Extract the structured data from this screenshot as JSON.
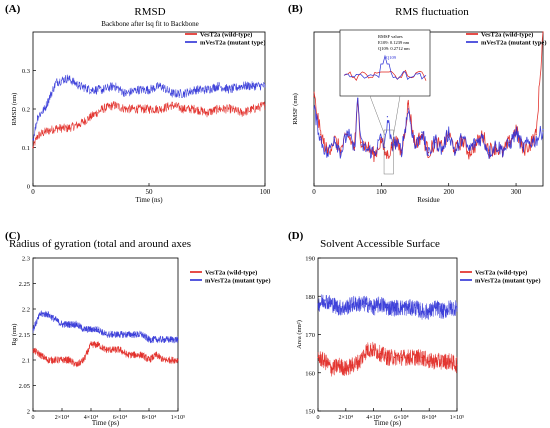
{
  "panels": [
    {
      "id": "A",
      "label": "(A)",
      "title": "RMSD",
      "subtitle": "Backbone after lsq fit to Backbone",
      "xlabel": "Time (ns)",
      "ylabel": "RMSD (nm)",
      "xlim": [
        0,
        100
      ],
      "ylim": [
        0,
        0.4
      ],
      "xticks": [
        0,
        50,
        100
      ],
      "xtick_labels": [
        "0",
        "50",
        "100"
      ],
      "yticks": [
        0,
        0.1,
        0.2,
        0.3
      ],
      "ytick_labels": [
        "0",
        "0.1",
        "0.2",
        "0.3"
      ],
      "legend": [
        "VesT2a (wild-type)",
        "mVesT2a (mutant type)"
      ]
    },
    {
      "id": "B",
      "label": "(B)",
      "title": "RMS fluctuation",
      "xlabel": "Residue",
      "ylabel": "RMSF (nm)",
      "xlim": [
        0,
        340
      ],
      "xticks": [
        0,
        100,
        200,
        300
      ],
      "xtick_labels": [
        "0",
        "100",
        "200",
        "300"
      ],
      "legend": [
        "VesT2a (wild-type)",
        "mVesT2a (mutant type)"
      ],
      "inset": {
        "annotation_lines": [
          "RMSF values",
          "E109: 0.1239 nm",
          "Q109: 0.2712 nm"
        ],
        "peak_label": "Q109"
      }
    },
    {
      "id": "C",
      "label": "(C)",
      "title": "Radius of gyration (total and around axes",
      "xlabel": "Time (ps)",
      "ylabel": "Rg (nm)",
      "xlim": [
        0,
        100000
      ],
      "ylim": [
        2.0,
        2.3
      ],
      "xticks": [
        0,
        20000,
        40000,
        60000,
        80000,
        100000
      ],
      "xtick_labels": [
        "0",
        "2×10⁴",
        "4×10⁴",
        "6×10⁴",
        "8×10⁴",
        "1×10⁵"
      ],
      "yticks": [
        2.0,
        2.05,
        2.1,
        2.15,
        2.2,
        2.25,
        2.3
      ],
      "ytick_labels": [
        "2",
        "2.05",
        "2.1",
        "2.15",
        "2.2",
        "2.25",
        "2.3"
      ],
      "legend": [
        "VesT2a (wild-type)",
        "mVesT2a (mutant type)"
      ]
    },
    {
      "id": "D",
      "label": "(D)",
      "title": "Solvent Accessible Surface",
      "xlabel": "Time (ps)",
      "ylabel": "Area (nm²)",
      "xlim": [
        0,
        100000
      ],
      "ylim": [
        150,
        190
      ],
      "xticks": [
        0,
        20000,
        40000,
        60000,
        80000,
        100000
      ],
      "xtick_labels": [
        "0",
        "2×10⁴",
        "4×10⁴",
        "6×10⁴",
        "8×10⁴",
        "1×10⁵"
      ],
      "yticks": [
        150,
        160,
        170,
        180,
        190
      ],
      "ytick_labels": [
        "150",
        "160",
        "170",
        "180",
        "190"
      ],
      "legend": [
        "VesT2a (wild-type)",
        "mVesT2a (mutant type)"
      ]
    }
  ],
  "colors": {
    "wild": "#e0201b",
    "mutant": "#2b2fd6"
  },
  "chart_data": [
    {
      "panel": "A",
      "type": "line",
      "title": "RMSD",
      "xlabel": "Time (ns)",
      "ylabel": "RMSD (nm)",
      "xlim": [
        0,
        100
      ],
      "ylim": [
        0,
        0.4
      ],
      "x": [
        0,
        2,
        5,
        10,
        15,
        20,
        25,
        30,
        35,
        40,
        45,
        50,
        55,
        60,
        65,
        70,
        75,
        80,
        85,
        90,
        95,
        100
      ],
      "series": [
        {
          "name": "VesT2a (wild-type)",
          "values": [
            0.1,
            0.13,
            0.14,
            0.15,
            0.15,
            0.16,
            0.18,
            0.2,
            0.21,
            0.2,
            0.2,
            0.2,
            0.2,
            0.21,
            0.2,
            0.2,
            0.19,
            0.2,
            0.2,
            0.19,
            0.2,
            0.21
          ]
        },
        {
          "name": "mVesT2a (mutant type)",
          "values": [
            0.12,
            0.18,
            0.2,
            0.27,
            0.28,
            0.26,
            0.25,
            0.25,
            0.26,
            0.24,
            0.25,
            0.25,
            0.26,
            0.24,
            0.24,
            0.25,
            0.25,
            0.26,
            0.25,
            0.26,
            0.26,
            0.26
          ]
        }
      ]
    },
    {
      "panel": "B",
      "type": "line",
      "title": "RMS fluctuation",
      "xlabel": "Residue",
      "ylabel": "RMSF (nm)",
      "xlim": [
        0,
        340
      ],
      "x": [
        0,
        10,
        20,
        30,
        40,
        50,
        60,
        65,
        70,
        80,
        90,
        100,
        105,
        109,
        115,
        120,
        130,
        140,
        150,
        160,
        170,
        180,
        190,
        200,
        210,
        220,
        230,
        240,
        250,
        260,
        270,
        280,
        290,
        300,
        310,
        320,
        330,
        340
      ],
      "series": [
        {
          "name": "VesT2a (wild-type)",
          "values": [
            0.35,
            0.2,
            0.13,
            0.18,
            0.14,
            0.2,
            0.15,
            0.32,
            0.17,
            0.15,
            0.12,
            0.18,
            0.13,
            0.12,
            0.15,
            0.18,
            0.13,
            0.32,
            0.16,
            0.2,
            0.13,
            0.17,
            0.15,
            0.2,
            0.14,
            0.18,
            0.13,
            0.16,
            0.2,
            0.14,
            0.15,
            0.13,
            0.17,
            0.22,
            0.14,
            0.16,
            0.2,
            0.6
          ]
        },
        {
          "name": "mVesT2a (mutant type)",
          "values": [
            0.3,
            0.18,
            0.12,
            0.19,
            0.13,
            0.21,
            0.14,
            0.34,
            0.16,
            0.14,
            0.13,
            0.19,
            0.15,
            0.27,
            0.16,
            0.17,
            0.14,
            0.3,
            0.15,
            0.21,
            0.12,
            0.18,
            0.14,
            0.21,
            0.13,
            0.19,
            0.14,
            0.17,
            0.19,
            0.13,
            0.16,
            0.14,
            0.16,
            0.21,
            0.15,
            0.17,
            0.18,
            0.22
          ]
        }
      ]
    },
    {
      "panel": "C",
      "type": "line",
      "title": "Radius of gyration (total and around axes",
      "xlabel": "Time (ps)",
      "ylabel": "Rg (nm)",
      "xlim": [
        0,
        100000
      ],
      "ylim": [
        2.0,
        2.3
      ],
      "x": [
        0,
        5000,
        10000,
        15000,
        20000,
        25000,
        30000,
        35000,
        40000,
        45000,
        50000,
        55000,
        60000,
        65000,
        70000,
        75000,
        80000,
        85000,
        90000,
        95000,
        100000
      ],
      "series": [
        {
          "name": "VesT2a (wild-type)",
          "values": [
            2.12,
            2.11,
            2.1,
            2.1,
            2.1,
            2.1,
            2.09,
            2.1,
            2.13,
            2.13,
            2.12,
            2.12,
            2.12,
            2.11,
            2.11,
            2.11,
            2.1,
            2.11,
            2.1,
            2.1,
            2.1
          ]
        },
        {
          "name": "mVesT2a (mutant type)",
          "values": [
            2.16,
            2.19,
            2.19,
            2.18,
            2.17,
            2.17,
            2.17,
            2.16,
            2.16,
            2.16,
            2.15,
            2.15,
            2.15,
            2.15,
            2.15,
            2.15,
            2.14,
            2.14,
            2.14,
            2.14,
            2.14
          ]
        }
      ]
    },
    {
      "panel": "D",
      "type": "line",
      "title": "Solvent Accessible Surface",
      "xlabel": "Time (ps)",
      "ylabel": "Area (nm²)",
      "xlim": [
        0,
        100000
      ],
      "ylim": [
        150,
        190
      ],
      "x": [
        0,
        5000,
        10000,
        15000,
        20000,
        25000,
        30000,
        35000,
        40000,
        45000,
        50000,
        55000,
        60000,
        65000,
        70000,
        75000,
        80000,
        85000,
        90000,
        95000,
        100000
      ],
      "series": [
        {
          "name": "VesT2a (wild-type)",
          "values": [
            164,
            163,
            161,
            162,
            161,
            162,
            163,
            166,
            166,
            165,
            164,
            164,
            164,
            164,
            164,
            164,
            163,
            163,
            163,
            163,
            162
          ]
        },
        {
          "name": "mVesT2a (mutant type)",
          "values": [
            178,
            179,
            178,
            177,
            177,
            178,
            178,
            178,
            177,
            178,
            177,
            177,
            177,
            177,
            177,
            176,
            176,
            177,
            176,
            177,
            177
          ]
        }
      ]
    }
  ]
}
